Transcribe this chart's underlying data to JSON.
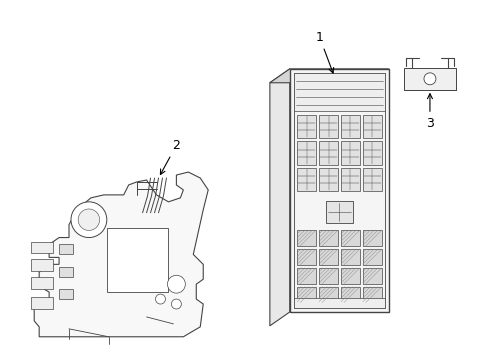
{
  "background_color": "#ffffff",
  "line_color": "#444444",
  "label_color": "#000000",
  "figsize": [
    4.9,
    3.6
  ],
  "dpi": 100
}
